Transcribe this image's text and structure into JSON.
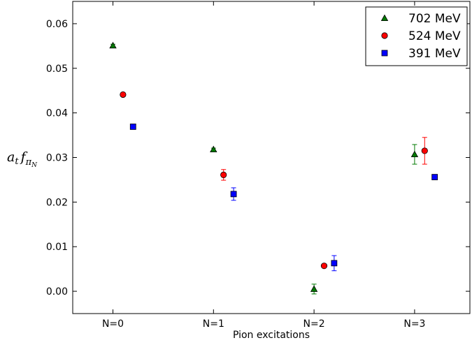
{
  "chart_data": {
    "type": "scatter",
    "title": "",
    "xlabel": "Pion excitations",
    "ylabel": {
      "base": "a",
      "base_sub": "t",
      "factor": "f",
      "factor_sub": "π",
      "factor_subsub": "N"
    },
    "categories": [
      "N=0",
      "N=1",
      "N=2",
      "N=3"
    ],
    "xlim": [
      -0.4,
      3.55
    ],
    "ylim": [
      -0.005,
      0.065
    ],
    "yticks": [
      0.0,
      0.01,
      0.02,
      0.03,
      0.04,
      0.05,
      0.06
    ],
    "ytick_labels": [
      "0.00",
      "0.01",
      "0.02",
      "0.03",
      "0.04",
      "0.05",
      "0.06"
    ],
    "grid": false,
    "legend_position": "top-right",
    "series": [
      {
        "name": "702 MeV",
        "marker": "triangle",
        "color": "#007a00",
        "x": [
          0.0,
          1.0,
          2.0,
          3.0
        ],
        "y": [
          0.0551,
          0.0318,
          0.0005,
          0.0307
        ],
        "yerr": [
          0.0003,
          0.0003,
          0.0011,
          0.0022
        ]
      },
      {
        "name": "524 MeV",
        "marker": "circle",
        "color": "#ff0000",
        "x": [
          0.1,
          1.1,
          2.1,
          3.1
        ],
        "y": [
          0.0441,
          0.0261,
          0.0057,
          0.0315
        ],
        "yerr": [
          0.0002,
          0.0012,
          0.0003,
          0.003
        ]
      },
      {
        "name": "391 MeV",
        "marker": "square",
        "color": "#0000ff",
        "x": [
          0.2,
          1.2,
          2.2,
          3.2
        ],
        "y": [
          0.0369,
          0.0218,
          0.0063,
          0.0256
        ],
        "yerr": [
          0.0003,
          0.0014,
          0.0017,
          0.0002
        ]
      }
    ]
  }
}
